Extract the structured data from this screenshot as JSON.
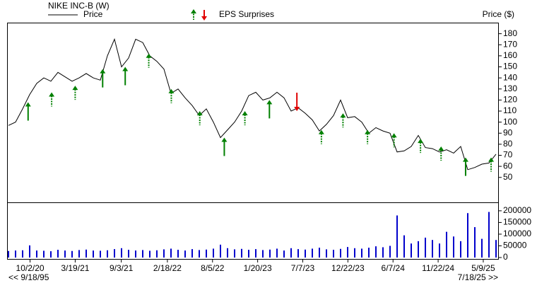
{
  "chart_data": {
    "type": "line",
    "title": "NIKE INC-B (W)",
    "legend_label": "Price",
    "eps_label": "EPS Surprises",
    "y_label": "Price ($)",
    "nav_prev": "<< 9/18/95",
    "nav_next": "7/18/25 >>",
    "xlim": [
      2020.52,
      2025.49
    ],
    "xticks": [
      {
        "value": 2020.74,
        "label": "10/2/20"
      },
      {
        "value": 2021.2,
        "label": "3/19/21"
      },
      {
        "value": 2021.67,
        "label": "9/3/21"
      },
      {
        "value": 2022.14,
        "label": "2/18/22"
      },
      {
        "value": 2022.6,
        "label": "8/5/22"
      },
      {
        "value": 2023.06,
        "label": "1/20/23"
      },
      {
        "value": 2023.52,
        "label": "7/7/23"
      },
      {
        "value": 2023.98,
        "label": "12/22/23"
      },
      {
        "value": 2024.44,
        "label": "6/7/24"
      },
      {
        "value": 2024.9,
        "label": "11/22/24"
      },
      {
        "value": 2025.36,
        "label": "5/9/25"
      }
    ],
    "ylim": [
      30,
      190
    ],
    "yticks": [
      50,
      60,
      70,
      80,
      90,
      100,
      110,
      120,
      130,
      140,
      150,
      160,
      170,
      180
    ],
    "series": [
      {
        "name": "Price",
        "color": "#000000",
        "values": [
          97,
          100,
          112,
          125,
          135,
          140,
          137,
          145,
          141,
          137,
          140,
          144,
          140,
          138,
          160,
          175,
          150,
          158,
          175,
          172,
          160,
          155,
          148,
          126,
          130,
          122,
          115,
          106,
          112,
          100,
          86,
          93,
          100,
          110,
          124,
          127,
          120,
          122,
          127,
          122,
          110,
          113,
          108,
          102,
          92,
          98,
          106,
          120,
          104,
          105,
          100,
          90,
          95,
          92,
          90,
          73,
          74,
          78,
          88,
          77,
          76,
          73,
          75,
          72,
          78,
          57,
          59,
          62,
          63,
          71
        ]
      }
    ],
    "volume": {
      "color": "#0000cc",
      "ylim": [
        0,
        230000
      ],
      "yticks": [
        0,
        50000,
        100000,
        150000,
        200000
      ],
      "values": [
        28000,
        30000,
        31000,
        52000,
        30000,
        29000,
        27000,
        33000,
        30000,
        28000,
        32000,
        34000,
        30000,
        29000,
        31000,
        36000,
        40000,
        33000,
        30000,
        32000,
        29000,
        31000,
        35000,
        38000,
        33000,
        30000,
        36000,
        32000,
        34000,
        38000,
        55000,
        40000,
        35000,
        37000,
        33000,
        36000,
        32000,
        34000,
        38000,
        30000,
        40000,
        36000,
        34000,
        38000,
        42000,
        35000,
        33000,
        37000,
        45000,
        40000,
        38000,
        42000,
        48000,
        44000,
        50000,
        180000,
        95000,
        60000,
        70000,
        85000,
        75000,
        60000,
        110000,
        90000,
        70000,
        190000,
        130000,
        80000,
        195000,
        75000
      ]
    },
    "eps_colors": {
      "up": "#008000",
      "down": "#e00000"
    },
    "eps_surprises": [
      {
        "x": 2020.72,
        "price": 118,
        "direction": "up",
        "style": "solid"
      },
      {
        "x": 2020.96,
        "price": 127,
        "direction": "up",
        "style": "dashed"
      },
      {
        "x": 2021.2,
        "price": 133,
        "direction": "up",
        "style": "dashed"
      },
      {
        "x": 2021.48,
        "price": 148,
        "direction": "up",
        "style": "solid"
      },
      {
        "x": 2021.71,
        "price": 150,
        "direction": "up",
        "style": "solid"
      },
      {
        "x": 2021.95,
        "price": 162,
        "direction": "up",
        "style": "dashed"
      },
      {
        "x": 2022.18,
        "price": 130,
        "direction": "up",
        "style": "dashed"
      },
      {
        "x": 2022.47,
        "price": 110,
        "direction": "up",
        "style": "dashed"
      },
      {
        "x": 2022.72,
        "price": 86,
        "direction": "up",
        "style": "solid"
      },
      {
        "x": 2022.93,
        "price": 110,
        "direction": "up",
        "style": "dashed"
      },
      {
        "x": 2023.18,
        "price": 120,
        "direction": "up",
        "style": "solid"
      },
      {
        "x": 2023.46,
        "price": 110,
        "direction": "down",
        "style": "solid"
      },
      {
        "x": 2023.71,
        "price": 93,
        "direction": "up",
        "style": "dashed"
      },
      {
        "x": 2023.93,
        "price": 108,
        "direction": "up",
        "style": "dashed"
      },
      {
        "x": 2024.18,
        "price": 93,
        "direction": "up",
        "style": "dashed"
      },
      {
        "x": 2024.45,
        "price": 90,
        "direction": "up",
        "style": "dashed"
      },
      {
        "x": 2024.72,
        "price": 85,
        "direction": "up",
        "style": "dashed"
      },
      {
        "x": 2024.93,
        "price": 78,
        "direction": "up",
        "style": "dashed"
      },
      {
        "x": 2025.18,
        "price": 68,
        "direction": "up",
        "style": "solid"
      },
      {
        "x": 2025.44,
        "price": 68,
        "direction": "up",
        "style": "dashed"
      }
    ]
  }
}
